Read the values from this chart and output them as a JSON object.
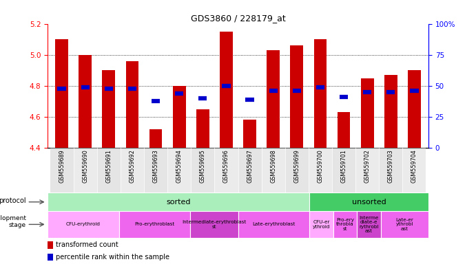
{
  "title": "GDS3860 / 228179_at",
  "samples": [
    "GSM559689",
    "GSM559690",
    "GSM559691",
    "GSM559692",
    "GSM559693",
    "GSM559694",
    "GSM559695",
    "GSM559696",
    "GSM559697",
    "GSM559698",
    "GSM559699",
    "GSM559700",
    "GSM559701",
    "GSM559702",
    "GSM559703",
    "GSM559704"
  ],
  "bar_values": [
    5.1,
    5.0,
    4.9,
    4.96,
    4.52,
    4.8,
    4.65,
    5.15,
    4.58,
    5.03,
    5.06,
    5.1,
    4.63,
    4.85,
    4.87,
    4.9
  ],
  "percentile_values": [
    4.78,
    4.79,
    4.78,
    4.78,
    4.7,
    4.75,
    4.72,
    4.8,
    4.71,
    4.77,
    4.77,
    4.79,
    4.73,
    4.76,
    4.76,
    4.77
  ],
  "bar_bottom": 4.4,
  "ylim": [
    4.4,
    5.2
  ],
  "yticks_left": [
    4.4,
    4.6,
    4.8,
    5.0,
    5.2
  ],
  "yticks_right": [
    0,
    25,
    50,
    75,
    100
  ],
  "bar_color": "#cc0000",
  "percentile_color": "#0000cc",
  "protocol_sorted_color": "#aaeebb",
  "protocol_unsorted_color": "#44cc66",
  "sorted_count": 11,
  "total_count": 16,
  "dev_stages": [
    {
      "label": "CFU-erythroid",
      "start": 0,
      "end": 3,
      "color": "#ffaaff"
    },
    {
      "label": "Pro-erythroblast",
      "start": 3,
      "end": 6,
      "color": "#ee66ee"
    },
    {
      "label": "Intermediate-erythroblast\nst",
      "start": 6,
      "end": 8,
      "color": "#cc44cc"
    },
    {
      "label": "Late-erythroblast",
      "start": 8,
      "end": 11,
      "color": "#ee66ee"
    },
    {
      "label": "CFU-er\nythroid",
      "start": 11,
      "end": 12,
      "color": "#ffaaff"
    },
    {
      "label": "Pro-ery\nthrobla\nst",
      "start": 12,
      "end": 13,
      "color": "#ee66ee"
    },
    {
      "label": "Interme\ndiate-e\nrythrobl\nast",
      "start": 13,
      "end": 14,
      "color": "#cc44cc"
    },
    {
      "label": "Late-er\nythrobl\nast",
      "start": 14,
      "end": 16,
      "color": "#ee66ee"
    }
  ]
}
